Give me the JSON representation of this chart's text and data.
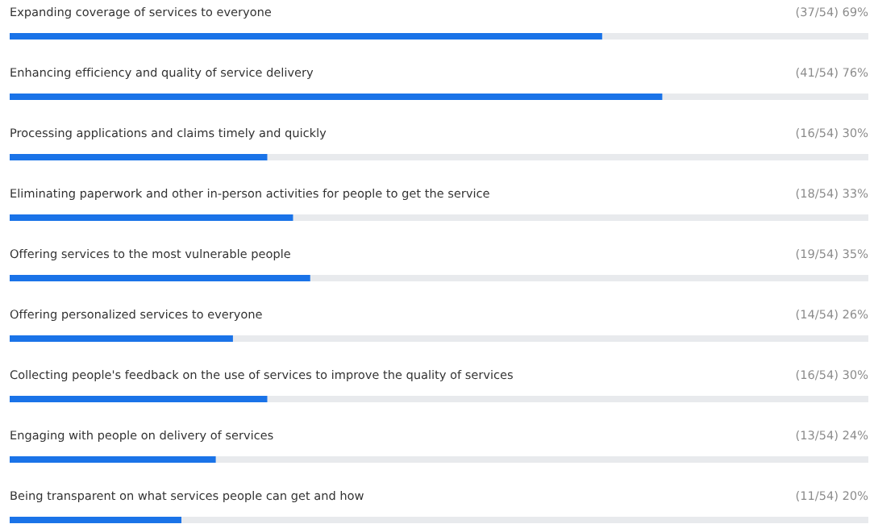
{
  "chart_data": {
    "type": "bar",
    "orientation": "horizontal",
    "categories": [
      "Expanding coverage of services to everyone",
      "Enhancing efficiency and quality of service delivery",
      "Processing applications and claims timely and quickly",
      "Eliminating paperwork and other in-person activities for people to get the service",
      "Offering services to the most vulnerable people",
      "Offering personalized services to everyone",
      "Collecting people's feedback on the use of services to improve the quality of services",
      "Engaging with people on delivery of services",
      "Being transparent on what services people can get and how"
    ],
    "values": [
      69,
      76,
      30,
      33,
      35,
      26,
      30,
      24,
      20
    ],
    "value_labels": [
      "(37/54) 69%",
      "(41/54) 76%",
      "(16/54) 30%",
      "(18/54) 33%",
      "(19/54) 35%",
      "(14/54) 26%",
      "(16/54) 30%",
      "(13/54) 24%",
      "(11/54) 20%"
    ],
    "color": "#1a73e8",
    "xlim": [
      0,
      100
    ]
  }
}
